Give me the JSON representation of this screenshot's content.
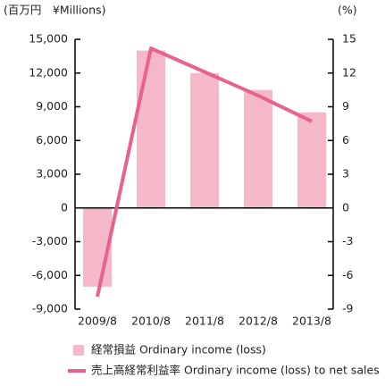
{
  "chart_data": {
    "type": "bar",
    "y_label": "(百万円　¥Millions)",
    "y2_label": "(%)",
    "categories": [
      "2009/8",
      "2010/8",
      "2011/8",
      "2012/8",
      "2013/8"
    ],
    "series": [
      {
        "name": "経常損益 Ordinary income (loss)",
        "type": "bar",
        "color": "#f4b8c9",
        "values": [
          -7000,
          14000,
          12000,
          10500,
          8500
        ]
      },
      {
        "name": "売上高経常利益率 Ordinary income (loss) to net sales",
        "type": "line",
        "axis": "y2",
        "color": "#e8628d",
        "values": [
          -7.9,
          14.2,
          12.1,
          10.0,
          7.7
        ]
      }
    ],
    "ylim": [
      -9000,
      15000
    ],
    "yticks": [
      {
        "value": -9000,
        "label": "-9,000"
      },
      {
        "value": -6000,
        "label": "-6,000"
      },
      {
        "value": -3000,
        "label": "-3,000"
      },
      0,
      {
        "value": 3000,
        "label": "3,000"
      },
      {
        "value": 6000,
        "label": "6,000"
      },
      {
        "value": 9000,
        "label": "9,000"
      },
      {
        "value": 12000,
        "label": "12,000"
      },
      {
        "value": 15000,
        "label": "15,000"
      }
    ],
    "y2lim": [
      -9,
      15
    ],
    "y2ticks": [
      -9,
      -6,
      -3,
      0,
      3,
      6,
      9,
      12,
      15
    ]
  }
}
